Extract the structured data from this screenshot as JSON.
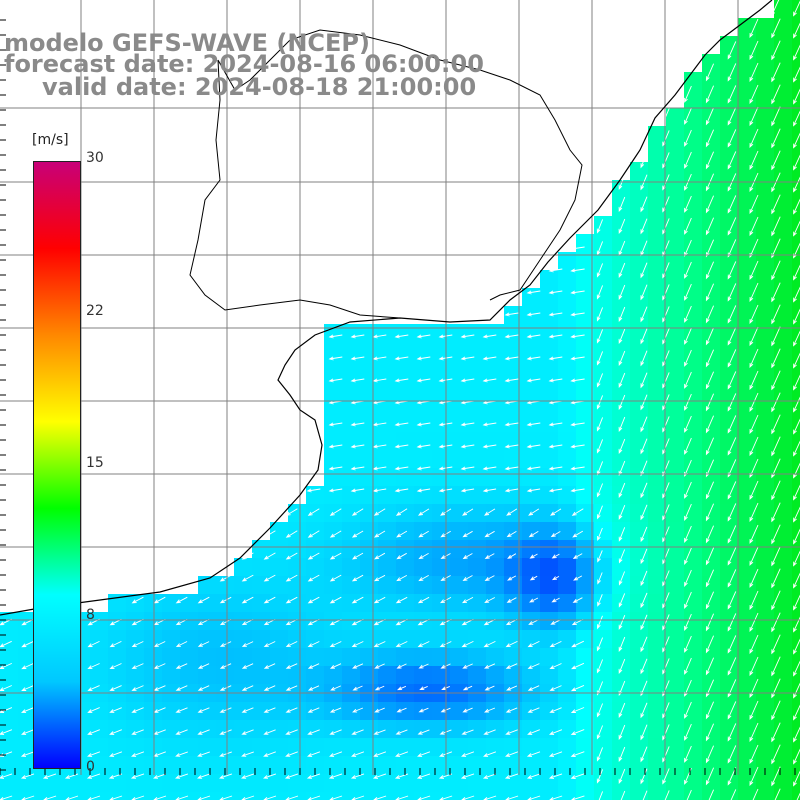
{
  "title": {
    "line1": "modelo GEFS-WAVE (NCEP)",
    "line2": "forecast date: 2024-08-16 06:00:00",
    "line3": "valid date: 2024-08-18 21:00:00"
  },
  "colorbar": {
    "unit": "[m/s]",
    "ticks": [
      {
        "label": "30",
        "value": 30
      },
      {
        "label": "22",
        "value": 22
      },
      {
        "label": "15",
        "value": 15
      },
      {
        "label": "8",
        "value": 8
      },
      {
        "label": "0",
        "value": 0
      }
    ],
    "stops": [
      "#0000ff",
      "#00c8ff",
      "#00ffff",
      "#00ff00",
      "#ffff00",
      "#ff8800",
      "#ff0000",
      "#c80078"
    ]
  },
  "map": {
    "variable": "wind speed and direction",
    "land_color": "#ffffff",
    "coast_color": "#000000",
    "grid_color": "#808080"
  }
}
